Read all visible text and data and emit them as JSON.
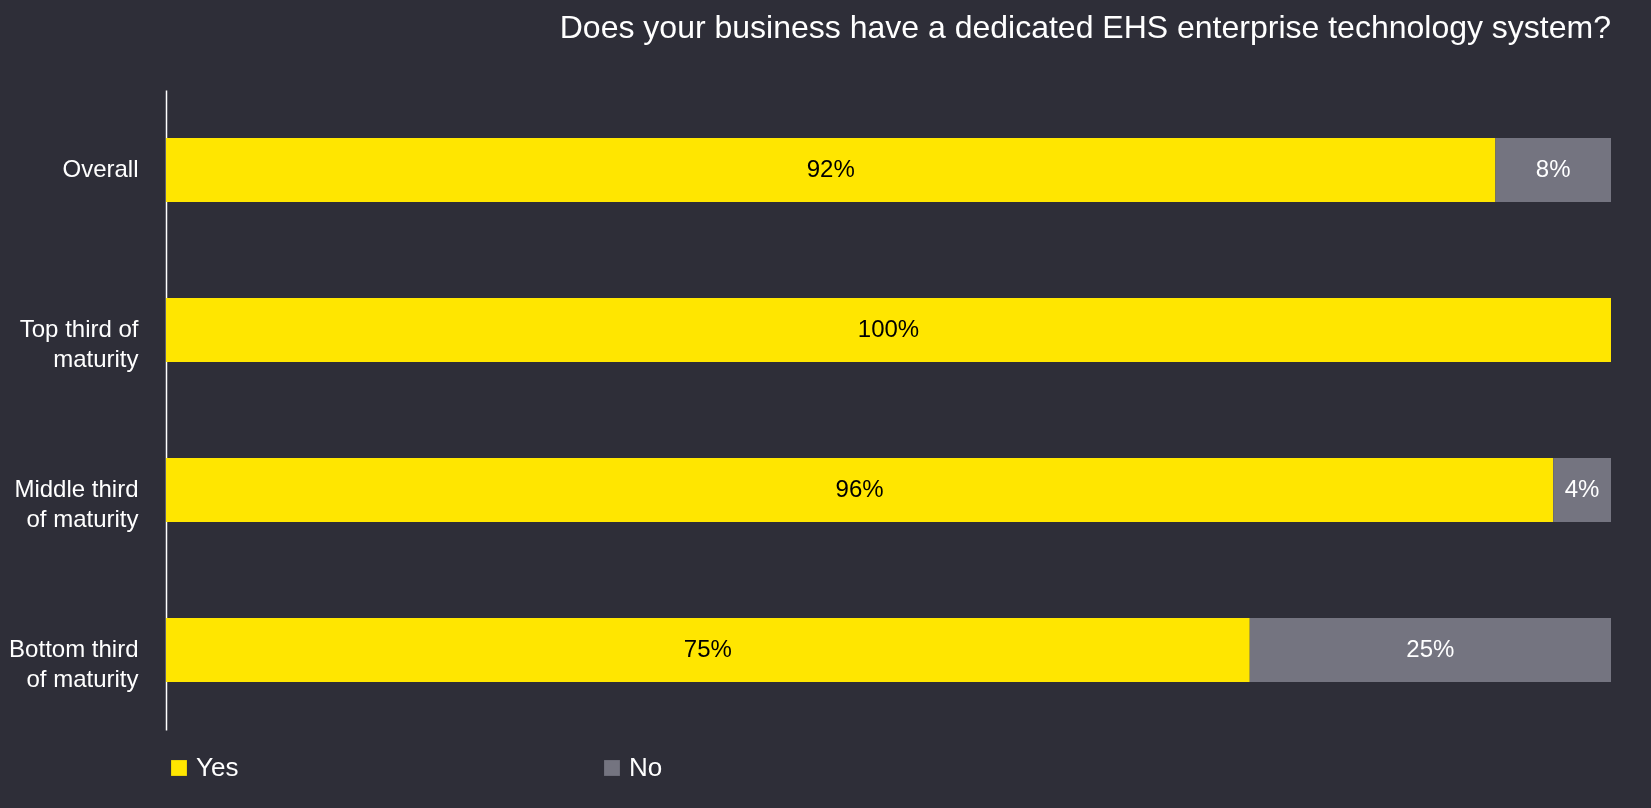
{
  "chart_data": {
    "type": "bar",
    "orientation": "horizontal",
    "stacked": true,
    "title": "Does your business have a dedicated EHS enterprise technology system?",
    "categories": [
      "Overall",
      "Top third of maturity",
      "Middle third of maturity",
      "Bottom third of maturity"
    ],
    "series": [
      {
        "name": "Yes",
        "color": "#ffe600",
        "values": [
          92,
          100,
          96,
          75
        ],
        "value_labels": [
          "92%",
          "100%",
          "96%",
          "75%"
        ]
      },
      {
        "name": "No",
        "color": "#747480",
        "values": [
          8,
          0,
          4,
          25
        ],
        "value_labels": [
          "8%",
          null,
          "4%",
          "25%"
        ]
      }
    ],
    "legend": "bottom"
  }
}
